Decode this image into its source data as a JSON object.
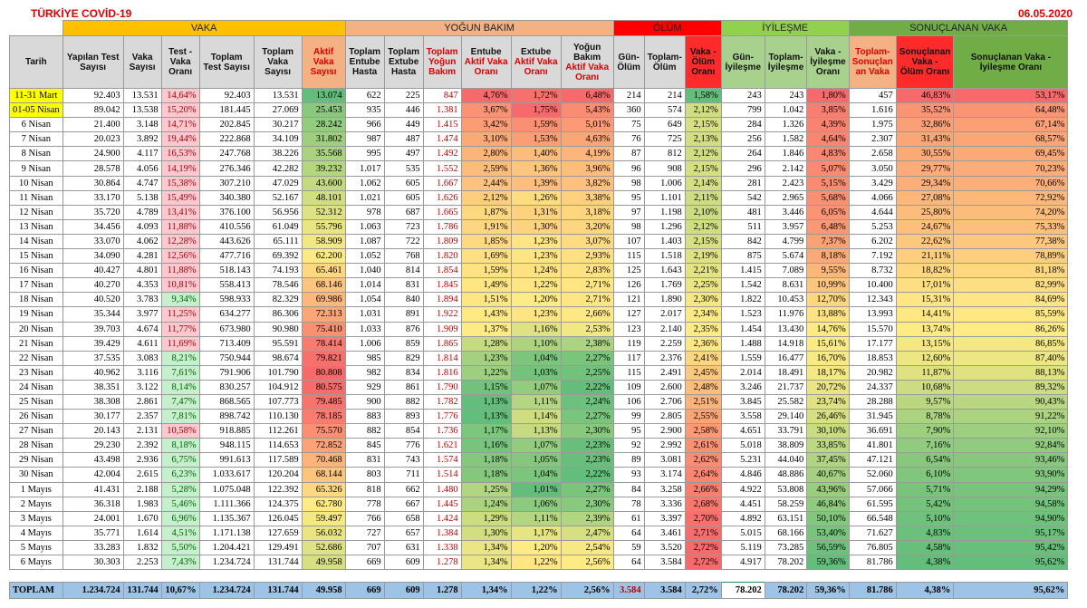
{
  "title": "TÜRKİYE COVİD-19",
  "date": "06.05.2020",
  "groups": [
    {
      "label": "VAKA",
      "span": 7,
      "color": "#ffc000"
    },
    {
      "label": "YOĞUN BAKIM",
      "span": 6,
      "color": "#f4b183"
    },
    {
      "label": "ÖLÜM",
      "span": 3,
      "color": "#ff0000"
    },
    {
      "label": "İYİLEŞME",
      "span": 3,
      "color": "#92d050"
    },
    {
      "label": "SONUÇLANAN VAKA",
      "span": 3,
      "color": "#70ad47"
    }
  ],
  "columns": [
    "Tarih",
    "Yapılan Test Sayısı",
    "Vaka Sayısı",
    "Test - Vaka Oranı",
    "Toplam Test Sayısı",
    "Toplam Vaka Sayısı",
    "Aktif Vaka Sayısı",
    "Toplam Entube Hasta",
    "Toplam Extube Hasta",
    "Toplam Yoğun Bakım",
    "Entube Aktif Vaka Oranı",
    "Extube Aktif Vaka Oranı",
    "Yoğun Bakım Aktif Vaka Oranı",
    "Gün- Ölüm",
    "Toplam- Ölüm",
    "Vaka - Ölüm Oranı",
    "Gün- İyileşme",
    "Toplam- İyileşme",
    "Vaka - İyileşme Oranı",
    "Toplam- Sonuçlan an Vaka",
    "Sonuçlanan Vaka - Ölüm Oranı",
    "Sonuçlanan Vaka - İyileşme Oranı"
  ],
  "rows": [
    [
      "11-31 Mart",
      "92.403",
      "13.531",
      "14,64%",
      "92.403",
      "13.531",
      "13.074",
      "622",
      "225",
      "847",
      "4,76%",
      "1,72%",
      "6,48%",
      "214",
      "214",
      "1,58%",
      "243",
      "243",
      "1,80%",
      "457",
      "46,83%",
      "53,17%"
    ],
    [
      "01-05 Nisan",
      "89.042",
      "13.538",
      "15,20%",
      "181.445",
      "27.069",
      "25.453",
      "935",
      "446",
      "1.381",
      "3,67%",
      "1,75%",
      "5,43%",
      "360",
      "574",
      "2,12%",
      "799",
      "1.042",
      "3,85%",
      "1.616",
      "35,52%",
      "64,48%"
    ],
    [
      "6 Nisan",
      "21.400",
      "3.148",
      "14,71%",
      "202.845",
      "30.217",
      "28.242",
      "966",
      "449",
      "1.415",
      "3,42%",
      "1,59%",
      "5,01%",
      "75",
      "649",
      "2,15%",
      "284",
      "1.326",
      "4,39%",
      "1.975",
      "32,86%",
      "67,14%"
    ],
    [
      "7 Nisan",
      "20.023",
      "3.892",
      "19,44%",
      "222.868",
      "34.109",
      "31.802",
      "987",
      "487",
      "1.474",
      "3,10%",
      "1,53%",
      "4,63%",
      "76",
      "725",
      "2,13%",
      "256",
      "1.582",
      "4,64%",
      "2.307",
      "31,43%",
      "68,57%"
    ],
    [
      "8 Nisan",
      "24.900",
      "4.117",
      "16,53%",
      "247.768",
      "38.226",
      "35.568",
      "995",
      "497",
      "1.492",
      "2,80%",
      "1,40%",
      "4,19%",
      "87",
      "812",
      "2,12%",
      "264",
      "1.846",
      "4,83%",
      "2.658",
      "30,55%",
      "69,45%"
    ],
    [
      "9 Nisan",
      "28.578",
      "4.056",
      "14,19%",
      "276.346",
      "42.282",
      "39.232",
      "1.017",
      "535",
      "1.552",
      "2,59%",
      "1,36%",
      "3,96%",
      "96",
      "908",
      "2,15%",
      "296",
      "2.142",
      "5,07%",
      "3.050",
      "29,77%",
      "70,23%"
    ],
    [
      "10 Nisan",
      "30.864",
      "4.747",
      "15,38%",
      "307.210",
      "47.029",
      "43.600",
      "1.062",
      "605",
      "1.667",
      "2,44%",
      "1,39%",
      "3,82%",
      "98",
      "1.006",
      "2,14%",
      "281",
      "2.423",
      "5,15%",
      "3.429",
      "29,34%",
      "70,66%"
    ],
    [
      "11 Nisan",
      "33.170",
      "5.138",
      "15,49%",
      "340.380",
      "52.167",
      "48.101",
      "1.021",
      "605",
      "1.626",
      "2,12%",
      "1,26%",
      "3,38%",
      "95",
      "1.101",
      "2,11%",
      "542",
      "2.965",
      "5,68%",
      "4.066",
      "27,08%",
      "72,92%"
    ],
    [
      "12 Nisan",
      "35.720",
      "4.789",
      "13,41%",
      "376.100",
      "56.956",
      "52.312",
      "978",
      "687",
      "1.665",
      "1,87%",
      "1,31%",
      "3,18%",
      "97",
      "1.198",
      "2,10%",
      "481",
      "3.446",
      "6,05%",
      "4.644",
      "25,80%",
      "74,20%"
    ],
    [
      "13 Nisan",
      "34.456",
      "4.093",
      "11,88%",
      "410.556",
      "61.049",
      "55.796",
      "1.063",
      "723",
      "1.786",
      "1,91%",
      "1,30%",
      "3,20%",
      "98",
      "1.296",
      "2,12%",
      "511",
      "3.957",
      "6,48%",
      "5.253",
      "24,67%",
      "75,33%"
    ],
    [
      "14 Nisan",
      "33.070",
      "4.062",
      "12,28%",
      "443.626",
      "65.111",
      "58.909",
      "1.087",
      "722",
      "1.809",
      "1,85%",
      "1,23%",
      "3,07%",
      "107",
      "1.403",
      "2,15%",
      "842",
      "4.799",
      "7,37%",
      "6.202",
      "22,62%",
      "77,38%"
    ],
    [
      "15 Nisan",
      "34.090",
      "4.281",
      "12,56%",
      "477.716",
      "69.392",
      "62.200",
      "1.052",
      "768",
      "1.820",
      "1,69%",
      "1,23%",
      "2,93%",
      "115",
      "1.518",
      "2,19%",
      "875",
      "5.674",
      "8,18%",
      "7.192",
      "21,11%",
      "78,89%"
    ],
    [
      "16 Nisan",
      "40.427",
      "4.801",
      "11,88%",
      "518.143",
      "74.193",
      "65.461",
      "1.040",
      "814",
      "1.854",
      "1,59%",
      "1,24%",
      "2,83%",
      "125",
      "1.643",
      "2,21%",
      "1.415",
      "7.089",
      "9,55%",
      "8.732",
      "18,82%",
      "81,18%"
    ],
    [
      "17 Nisan",
      "40.270",
      "4.353",
      "10,81%",
      "558.413",
      "78.546",
      "68.146",
      "1.014",
      "831",
      "1.845",
      "1,49%",
      "1,22%",
      "2,71%",
      "126",
      "1.769",
      "2,25%",
      "1.542",
      "8.631",
      "10,99%",
      "10.400",
      "17,01%",
      "82,99%"
    ],
    [
      "18 Nisan",
      "40.520",
      "3.783",
      "9,34%",
      "598.933",
      "82.329",
      "69.986",
      "1.054",
      "840",
      "1.894",
      "1,51%",
      "1,20%",
      "2,71%",
      "121",
      "1.890",
      "2,30%",
      "1.822",
      "10.453",
      "12,70%",
      "12.343",
      "15,31%",
      "84,69%"
    ],
    [
      "19 Nisan",
      "35.344",
      "3.977",
      "11,25%",
      "634.277",
      "86.306",
      "72.313",
      "1.031",
      "891",
      "1.922",
      "1,43%",
      "1,23%",
      "2,66%",
      "127",
      "2.017",
      "2,34%",
      "1.523",
      "11.976",
      "13,88%",
      "13.993",
      "14,41%",
      "85,59%"
    ],
    [
      "20 Nisan",
      "39.703",
      "4.674",
      "11,77%",
      "673.980",
      "90.980",
      "75.410",
      "1.033",
      "876",
      "1.909",
      "1,37%",
      "1,16%",
      "2,53%",
      "123",
      "2.140",
      "2,35%",
      "1.454",
      "13.430",
      "14,76%",
      "15.570",
      "13,74%",
      "86,26%"
    ],
    [
      "21 Nisan",
      "39.429",
      "4.611",
      "11,69%",
      "713.409",
      "95.591",
      "78.414",
      "1.006",
      "859",
      "1.865",
      "1,28%",
      "1,10%",
      "2,38%",
      "119",
      "2.259",
      "2,36%",
      "1.488",
      "14.918",
      "15,61%",
      "17.177",
      "13,15%",
      "86,85%"
    ],
    [
      "22 Nisan",
      "37.535",
      "3.083",
      "8,21%",
      "750.944",
      "98.674",
      "79.821",
      "985",
      "829",
      "1.814",
      "1,23%",
      "1,04%",
      "2,27%",
      "117",
      "2.376",
      "2,41%",
      "1.559",
      "16.477",
      "16,70%",
      "18.853",
      "12,60%",
      "87,40%"
    ],
    [
      "23 Nisan",
      "40.962",
      "3.116",
      "7,61%",
      "791.906",
      "101.790",
      "80.808",
      "982",
      "834",
      "1.816",
      "1,22%",
      "1,03%",
      "2,25%",
      "115",
      "2.491",
      "2,45%",
      "2.014",
      "18.491",
      "18,17%",
      "20.982",
      "11,87%",
      "88,13%"
    ],
    [
      "24 Nisan",
      "38.351",
      "3.122",
      "8,14%",
      "830.257",
      "104.912",
      "80.575",
      "929",
      "861",
      "1.790",
      "1,15%",
      "1,07%",
      "2,22%",
      "109",
      "2.600",
      "2,48%",
      "3.246",
      "21.737",
      "20,72%",
      "24.337",
      "10,68%",
      "89,32%"
    ],
    [
      "25 Nisan",
      "38.308",
      "2.861",
      "7,47%",
      "868.565",
      "107.773",
      "79.485",
      "900",
      "882",
      "1.782",
      "1,13%",
      "1,11%",
      "2,24%",
      "106",
      "2.706",
      "2,51%",
      "3.845",
      "25.582",
      "23,74%",
      "28.288",
      "9,57%",
      "90,43%"
    ],
    [
      "26 Nisan",
      "30.177",
      "2.357",
      "7,81%",
      "898.742",
      "110.130",
      "78.185",
      "883",
      "893",
      "1.776",
      "1,13%",
      "1,14%",
      "2,27%",
      "99",
      "2.805",
      "2,55%",
      "3.558",
      "29.140",
      "26,46%",
      "31.945",
      "8,78%",
      "91,22%"
    ],
    [
      "27 Nisan",
      "20.143",
      "2.131",
      "10,58%",
      "918.885",
      "112.261",
      "75.570",
      "882",
      "854",
      "1.736",
      "1,17%",
      "1,13%",
      "2,30%",
      "95",
      "2.900",
      "2,58%",
      "4.651",
      "33.791",
      "30,10%",
      "36.691",
      "7,90%",
      "92,10%"
    ],
    [
      "28 Nisan",
      "29.230",
      "2.392",
      "8,18%",
      "948.115",
      "114.653",
      "72.852",
      "845",
      "776",
      "1.621",
      "1,16%",
      "1,07%",
      "2,23%",
      "92",
      "2.992",
      "2,61%",
      "5.018",
      "38.809",
      "33,85%",
      "41.801",
      "7,16%",
      "92,84%"
    ],
    [
      "29 Nisan",
      "43.498",
      "2.936",
      "6,75%",
      "991.613",
      "117.589",
      "70.468",
      "831",
      "743",
      "1.574",
      "1,18%",
      "1,05%",
      "2,23%",
      "89",
      "3.081",
      "2,62%",
      "5.231",
      "44.040",
      "37,45%",
      "47.121",
      "6,54%",
      "93,46%"
    ],
    [
      "30 Nisan",
      "42.004",
      "2.615",
      "6,23%",
      "1.033.617",
      "120.204",
      "68.144",
      "803",
      "711",
      "1.514",
      "1,18%",
      "1,04%",
      "2,22%",
      "93",
      "3.174",
      "2,64%",
      "4.846",
      "48.886",
      "40,67%",
      "52.060",
      "6,10%",
      "93,90%"
    ],
    [
      "1 Mayıs",
      "41.431",
      "2.188",
      "5,28%",
      "1.075.048",
      "122.392",
      "65.326",
      "818",
      "662",
      "1.480",
      "1,25%",
      "1,01%",
      "2,27%",
      "84",
      "3.258",
      "2,66%",
      "4.922",
      "53.808",
      "43,96%",
      "57.066",
      "5,71%",
      "94,29%"
    ],
    [
      "2 Mayıs",
      "36.318",
      "1.983",
      "5,46%",
      "1.111.366",
      "124.375",
      "62.780",
      "778",
      "667",
      "1.445",
      "1,24%",
      "1,06%",
      "2,30%",
      "78",
      "3.336",
      "2,68%",
      "4.451",
      "58.259",
      "46,84%",
      "61.595",
      "5,42%",
      "94,58%"
    ],
    [
      "3 Mayıs",
      "24.001",
      "1.670",
      "6,96%",
      "1.135.367",
      "126.045",
      "59.497",
      "766",
      "658",
      "1.424",
      "1,29%",
      "1,11%",
      "2,39%",
      "61",
      "3.397",
      "2,70%",
      "4.892",
      "63.151",
      "50,10%",
      "66.548",
      "5,10%",
      "94,90%"
    ],
    [
      "4 Mayıs",
      "35.771",
      "1.614",
      "4,51%",
      "1.171.138",
      "127.659",
      "56.032",
      "727",
      "657",
      "1.384",
      "1,30%",
      "1,17%",
      "2,47%",
      "64",
      "3.461",
      "2,71%",
      "5.015",
      "68.166",
      "53,40%",
      "71.627",
      "4,83%",
      "95,17%"
    ],
    [
      "5 Mayıs",
      "33.283",
      "1.832",
      "5,50%",
      "1.204.421",
      "129.491",
      "52.686",
      "707",
      "631",
      "1.338",
      "1,34%",
      "1,20%",
      "2,54%",
      "59",
      "3.520",
      "2,72%",
      "5.119",
      "73.285",
      "56,59%",
      "76.805",
      "4,58%",
      "95,42%"
    ],
    [
      "6 Mayıs",
      "30.303",
      "2.253",
      "7,43%",
      "1.234.724",
      "131.744",
      "49.958",
      "669",
      "609",
      "1.278",
      "1,34%",
      "1,22%",
      "2,56%",
      "64",
      "3.584",
      "2,72%",
      "4.917",
      "78.202",
      "59,36%",
      "81.786",
      "4,38%",
      "95,62%"
    ]
  ],
  "total": [
    "TOPLAM",
    "1.234.724",
    "131.744",
    "10,67%",
    "1.234.724",
    "131.744",
    "49.958",
    "669",
    "609",
    "1.278",
    "1,34%",
    "1,22%",
    "2,56%",
    "3.584",
    "3.584",
    "2,72%",
    "78.202",
    "78.202",
    "59,36%",
    "81.786",
    "4,38%",
    "95,62%"
  ],
  "colors": {
    "red": "#f8696b",
    "yellow": "#ffeb84",
    "green": "#63be7b",
    "date_highlight": "#ffff00",
    "total_bg": "#9dc3e6"
  }
}
